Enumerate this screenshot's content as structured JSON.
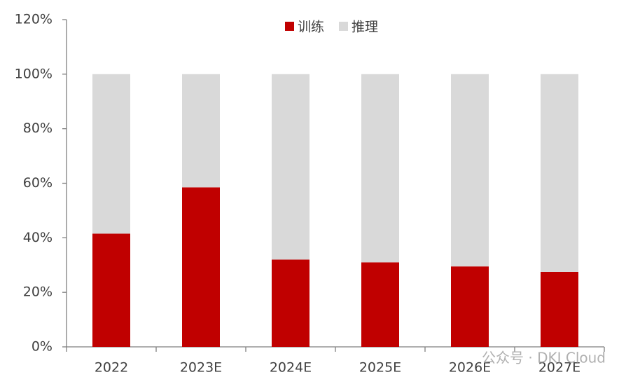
{
  "chart_data": {
    "type": "stacked_bar",
    "categories": [
      "2022",
      "2023E",
      "2024E",
      "2025E",
      "2026E",
      "2027E"
    ],
    "series": [
      {
        "name": "训练",
        "color": "#c00000",
        "values": [
          41.5,
          58.5,
          32,
          31,
          29.5,
          27.5
        ]
      },
      {
        "name": "推理",
        "color": "#d9d9d9",
        "values": [
          58.5,
          41.5,
          68,
          69,
          70.5,
          72.5
        ]
      }
    ],
    "ylim": [
      0,
      120
    ],
    "yticks": [
      {
        "value": 0,
        "label": "0%"
      },
      {
        "value": 20,
        "label": "20%"
      },
      {
        "value": 40,
        "label": "40%"
      },
      {
        "value": 60,
        "label": "60%"
      },
      {
        "value": 80,
        "label": "80%"
      },
      {
        "value": 100,
        "label": "100%"
      },
      {
        "value": 120,
        "label": "120%"
      }
    ],
    "grid": false,
    "legend": "top",
    "watermark": "公众号 · DKI Cloud"
  }
}
